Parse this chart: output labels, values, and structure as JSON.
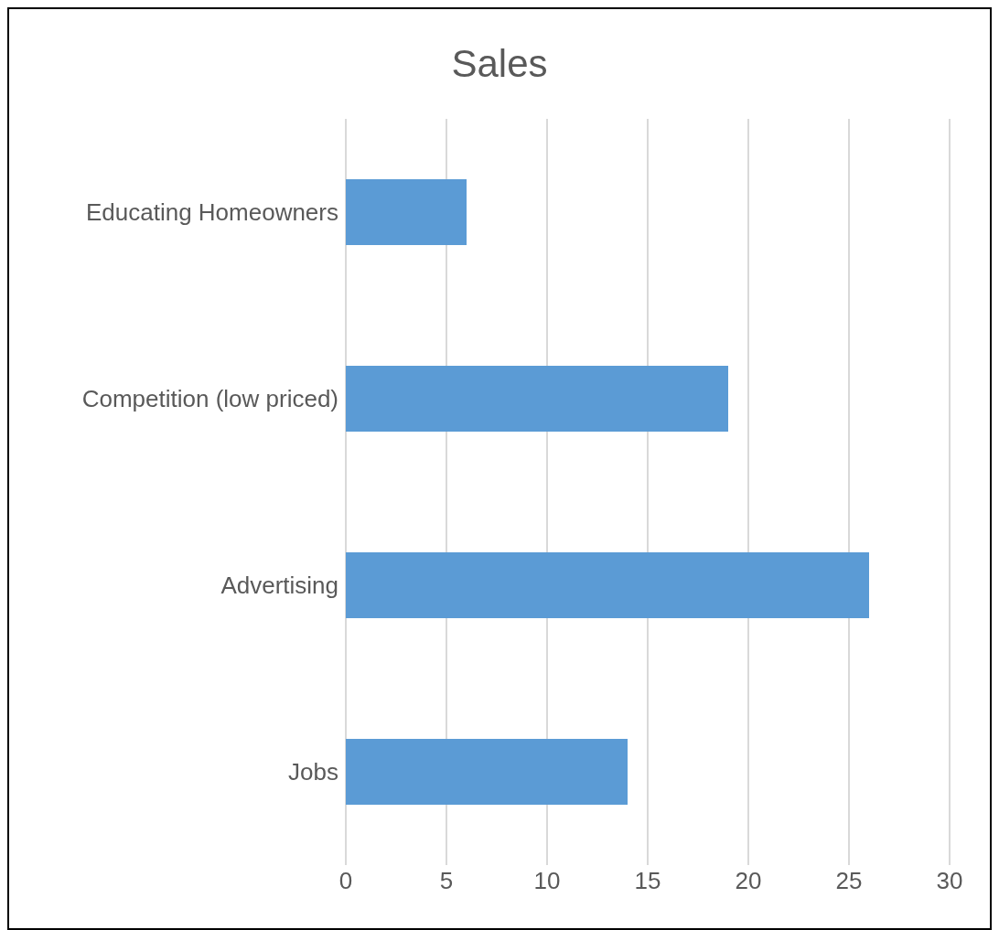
{
  "chart_data": {
    "type": "bar",
    "orientation": "horizontal",
    "title": "Sales",
    "categories": [
      "Educating Homeowners",
      "Competition (low priced)",
      "Advertising",
      "Jobs"
    ],
    "values": [
      6,
      19,
      26,
      14
    ],
    "color": "#5b9bd5",
    "xlim": [
      0,
      30
    ],
    "xticks": [
      0,
      5,
      10,
      15,
      20,
      25,
      30
    ],
    "grid": "x"
  }
}
